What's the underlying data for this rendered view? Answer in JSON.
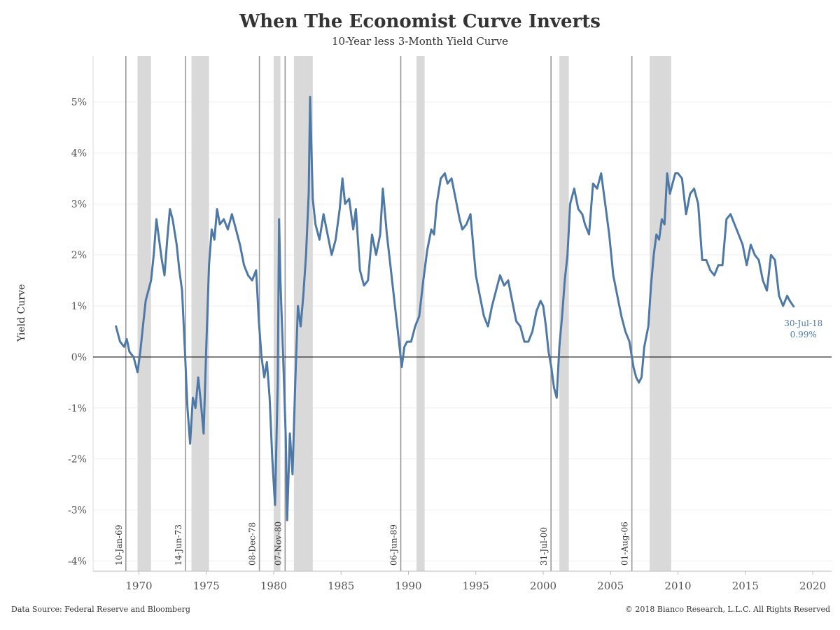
{
  "chart_data": {
    "type": "line",
    "title": "When The Economist Curve Inverts",
    "subtitle": "10-Year less 3-Month Yield Curve",
    "xlabel": "",
    "ylabel": "Yield Curve",
    "x_ticks": [
      "1970",
      "1975",
      "1980",
      "1985",
      "1990",
      "1995",
      "2000",
      "2005",
      "2010",
      "2015",
      "2020"
    ],
    "y_ticks": [
      "5%",
      "4%",
      "3%",
      "2%",
      "1%",
      "0%",
      "-1%",
      "-2%",
      "-3%",
      "-4%"
    ],
    "y_tick_values": [
      5,
      4,
      3,
      2,
      1,
      0,
      -1,
      -2,
      -3,
      -4
    ],
    "x_tick_values": [
      1970,
      1975,
      1980,
      1985,
      1990,
      1995,
      2000,
      2005,
      2010,
      2015,
      2020
    ],
    "xlim": [
      1966.6,
      2021.4
    ],
    "ylim": [
      -4.2,
      5.9
    ],
    "grid": true,
    "zero_line": true,
    "series": [
      {
        "name": "",
        "color": "#4e79a7",
        "points": [
          [
            1968.3,
            0.6
          ],
          [
            1968.6,
            0.3
          ],
          [
            1968.9,
            0.2
          ],
          [
            1969.1,
            0.35
          ],
          [
            1969.3,
            0.1
          ],
          [
            1969.6,
            0.0
          ],
          [
            1969.9,
            -0.3
          ],
          [
            1970.1,
            0.1
          ],
          [
            1970.3,
            0.6
          ],
          [
            1970.5,
            1.1
          ],
          [
            1970.7,
            1.3
          ],
          [
            1970.9,
            1.5
          ],
          [
            1971.1,
            2.0
          ],
          [
            1971.3,
            2.7
          ],
          [
            1971.5,
            2.3
          ],
          [
            1971.7,
            1.9
          ],
          [
            1971.9,
            1.6
          ],
          [
            1972.1,
            2.3
          ],
          [
            1972.3,
            2.9
          ],
          [
            1972.5,
            2.7
          ],
          [
            1972.8,
            2.2
          ],
          [
            1973.0,
            1.7
          ],
          [
            1973.2,
            1.3
          ],
          [
            1973.4,
            0.2
          ],
          [
            1973.6,
            -1.0
          ],
          [
            1973.8,
            -1.7
          ],
          [
            1974.0,
            -0.8
          ],
          [
            1974.2,
            -1.0
          ],
          [
            1974.4,
            -0.4
          ],
          [
            1974.6,
            -0.9
          ],
          [
            1974.8,
            -1.5
          ],
          [
            1975.0,
            0.2
          ],
          [
            1975.2,
            1.8
          ],
          [
            1975.4,
            2.5
          ],
          [
            1975.6,
            2.3
          ],
          [
            1975.8,
            2.9
          ],
          [
            1976.0,
            2.6
          ],
          [
            1976.3,
            2.7
          ],
          [
            1976.6,
            2.5
          ],
          [
            1976.9,
            2.8
          ],
          [
            1977.2,
            2.5
          ],
          [
            1977.5,
            2.2
          ],
          [
            1977.8,
            1.8
          ],
          [
            1978.1,
            1.6
          ],
          [
            1978.4,
            1.5
          ],
          [
            1978.7,
            1.7
          ],
          [
            1978.9,
            0.7
          ],
          [
            1979.1,
            0.0
          ],
          [
            1979.3,
            -0.4
          ],
          [
            1979.5,
            -0.1
          ],
          [
            1979.7,
            -0.8
          ],
          [
            1979.9,
            -2.0
          ],
          [
            1980.1,
            -2.9
          ],
          [
            1980.3,
            -0.5
          ],
          [
            1980.4,
            2.7
          ],
          [
            1980.5,
            1.5
          ],
          [
            1980.7,
            0.0
          ],
          [
            1980.9,
            -1.6
          ],
          [
            1981.0,
            -3.2
          ],
          [
            1981.2,
            -1.5
          ],
          [
            1981.4,
            -2.3
          ],
          [
            1981.6,
            -0.5
          ],
          [
            1981.8,
            1.0
          ],
          [
            1982.0,
            0.6
          ],
          [
            1982.2,
            1.2
          ],
          [
            1982.4,
            2.0
          ],
          [
            1982.6,
            3.2
          ],
          [
            1982.7,
            5.1
          ],
          [
            1982.9,
            3.1
          ],
          [
            1983.1,
            2.6
          ],
          [
            1983.4,
            2.3
          ],
          [
            1983.7,
            2.8
          ],
          [
            1984.0,
            2.4
          ],
          [
            1984.3,
            2.0
          ],
          [
            1984.6,
            2.3
          ],
          [
            1984.9,
            2.9
          ],
          [
            1985.1,
            3.5
          ],
          [
            1985.3,
            3.0
          ],
          [
            1985.6,
            3.1
          ],
          [
            1985.9,
            2.5
          ],
          [
            1986.1,
            2.9
          ],
          [
            1986.4,
            1.7
          ],
          [
            1986.7,
            1.4
          ],
          [
            1987.0,
            1.5
          ],
          [
            1987.3,
            2.4
          ],
          [
            1987.6,
            2.0
          ],
          [
            1987.9,
            2.4
          ],
          [
            1988.1,
            3.3
          ],
          [
            1988.4,
            2.4
          ],
          [
            1988.7,
            1.7
          ],
          [
            1989.0,
            1.0
          ],
          [
            1989.3,
            0.3
          ],
          [
            1989.5,
            -0.2
          ],
          [
            1989.7,
            0.2
          ],
          [
            1989.9,
            0.3
          ],
          [
            1990.2,
            0.3
          ],
          [
            1990.5,
            0.6
          ],
          [
            1990.8,
            0.8
          ],
          [
            1991.1,
            1.5
          ],
          [
            1991.4,
            2.1
          ],
          [
            1991.7,
            2.5
          ],
          [
            1991.9,
            2.4
          ],
          [
            1992.1,
            3.0
          ],
          [
            1992.4,
            3.5
          ],
          [
            1992.7,
            3.6
          ],
          [
            1992.9,
            3.4
          ],
          [
            1993.2,
            3.5
          ],
          [
            1993.5,
            3.1
          ],
          [
            1993.8,
            2.7
          ],
          [
            1994.0,
            2.5
          ],
          [
            1994.3,
            2.6
          ],
          [
            1994.6,
            2.8
          ],
          [
            1994.8,
            2.2
          ],
          [
            1995.0,
            1.6
          ],
          [
            1995.3,
            1.2
          ],
          [
            1995.6,
            0.8
          ],
          [
            1995.9,
            0.6
          ],
          [
            1996.2,
            1.0
          ],
          [
            1996.5,
            1.3
          ],
          [
            1996.8,
            1.6
          ],
          [
            1997.1,
            1.4
          ],
          [
            1997.4,
            1.5
          ],
          [
            1997.7,
            1.1
          ],
          [
            1998.0,
            0.7
          ],
          [
            1998.3,
            0.6
          ],
          [
            1998.6,
            0.3
          ],
          [
            1998.9,
            0.3
          ],
          [
            1999.2,
            0.5
          ],
          [
            1999.5,
            0.9
          ],
          [
            1999.8,
            1.1
          ],
          [
            2000.0,
            1.0
          ],
          [
            2000.2,
            0.6
          ],
          [
            2000.4,
            0.1
          ],
          [
            2000.6,
            -0.2
          ],
          [
            2000.8,
            -0.6
          ],
          [
            2001.0,
            -0.8
          ],
          [
            2001.2,
            0.2
          ],
          [
            2001.4,
            0.8
          ],
          [
            2001.6,
            1.5
          ],
          [
            2001.8,
            2.0
          ],
          [
            2002.0,
            3.0
          ],
          [
            2002.3,
            3.3
          ],
          [
            2002.6,
            2.9
          ],
          [
            2002.9,
            2.8
          ],
          [
            2003.1,
            2.6
          ],
          [
            2003.4,
            2.4
          ],
          [
            2003.7,
            3.4
          ],
          [
            2004.0,
            3.3
          ],
          [
            2004.3,
            3.6
          ],
          [
            2004.6,
            3.0
          ],
          [
            2004.9,
            2.4
          ],
          [
            2005.2,
            1.6
          ],
          [
            2005.5,
            1.2
          ],
          [
            2005.8,
            0.8
          ],
          [
            2006.1,
            0.5
          ],
          [
            2006.4,
            0.3
          ],
          [
            2006.7,
            -0.2
          ],
          [
            2006.9,
            -0.4
          ],
          [
            2007.1,
            -0.5
          ],
          [
            2007.3,
            -0.4
          ],
          [
            2007.5,
            0.2
          ],
          [
            2007.8,
            0.6
          ],
          [
            2008.0,
            1.4
          ],
          [
            2008.2,
            2.0
          ],
          [
            2008.4,
            2.4
          ],
          [
            2008.6,
            2.3
          ],
          [
            2008.8,
            2.7
          ],
          [
            2009.0,
            2.6
          ],
          [
            2009.2,
            3.6
          ],
          [
            2009.4,
            3.2
          ],
          [
            2009.6,
            3.4
          ],
          [
            2009.8,
            3.6
          ],
          [
            2010.0,
            3.6
          ],
          [
            2010.3,
            3.5
          ],
          [
            2010.6,
            2.8
          ],
          [
            2010.9,
            3.2
          ],
          [
            2011.2,
            3.3
          ],
          [
            2011.5,
            3.0
          ],
          [
            2011.8,
            1.9
          ],
          [
            2012.1,
            1.9
          ],
          [
            2012.4,
            1.7
          ],
          [
            2012.7,
            1.6
          ],
          [
            2013.0,
            1.8
          ],
          [
            2013.3,
            1.8
          ],
          [
            2013.6,
            2.7
          ],
          [
            2013.9,
            2.8
          ],
          [
            2014.2,
            2.6
          ],
          [
            2014.5,
            2.4
          ],
          [
            2014.8,
            2.2
          ],
          [
            2015.1,
            1.8
          ],
          [
            2015.4,
            2.2
          ],
          [
            2015.7,
            2.0
          ],
          [
            2016.0,
            1.9
          ],
          [
            2016.3,
            1.5
          ],
          [
            2016.6,
            1.3
          ],
          [
            2016.9,
            2.0
          ],
          [
            2017.2,
            1.9
          ],
          [
            2017.5,
            1.2
          ],
          [
            2017.8,
            1.0
          ],
          [
            2018.1,
            1.2
          ],
          [
            2018.3,
            1.1
          ],
          [
            2018.58,
            0.99
          ]
        ]
      }
    ],
    "inversion_dates": [
      {
        "label": "10-Jan-69",
        "x": 1969.03
      },
      {
        "label": "14-Jun-73",
        "x": 1973.45
      },
      {
        "label": "08-Dec-78",
        "x": 1978.94
      },
      {
        "label": "07-Nov-80",
        "x": 1980.85
      },
      {
        "label": "06-Jun-89",
        "x": 1989.43
      },
      {
        "label": "31-Jul-00",
        "x": 2000.58
      },
      {
        "label": "01-Aug-06",
        "x": 2006.58
      }
    ],
    "recessions": [
      {
        "start": 1969.9,
        "end": 1970.9
      },
      {
        "start": 1973.9,
        "end": 1975.2
      },
      {
        "start": 1980.0,
        "end": 1980.5
      },
      {
        "start": 1981.5,
        "end": 1982.9
      },
      {
        "start": 1990.6,
        "end": 1991.2
      },
      {
        "start": 2001.2,
        "end": 2001.9
      },
      {
        "start": 2007.9,
        "end": 2009.5
      }
    ],
    "end_annotation": {
      "date": "30-Jul-18",
      "value": "0.99%",
      "x": 2018.58,
      "y": 0.99
    },
    "colors": {
      "line": "#4e79a7",
      "recession": "#d9d9d9",
      "inversion_line": "#999999",
      "annotation": "#4e79a7"
    }
  },
  "footer": {
    "source": "Data Source: Federal Reserve and Bloomberg",
    "copyright": "© 2018 Bianco Research, L.L.C. All Rights Reserved"
  }
}
